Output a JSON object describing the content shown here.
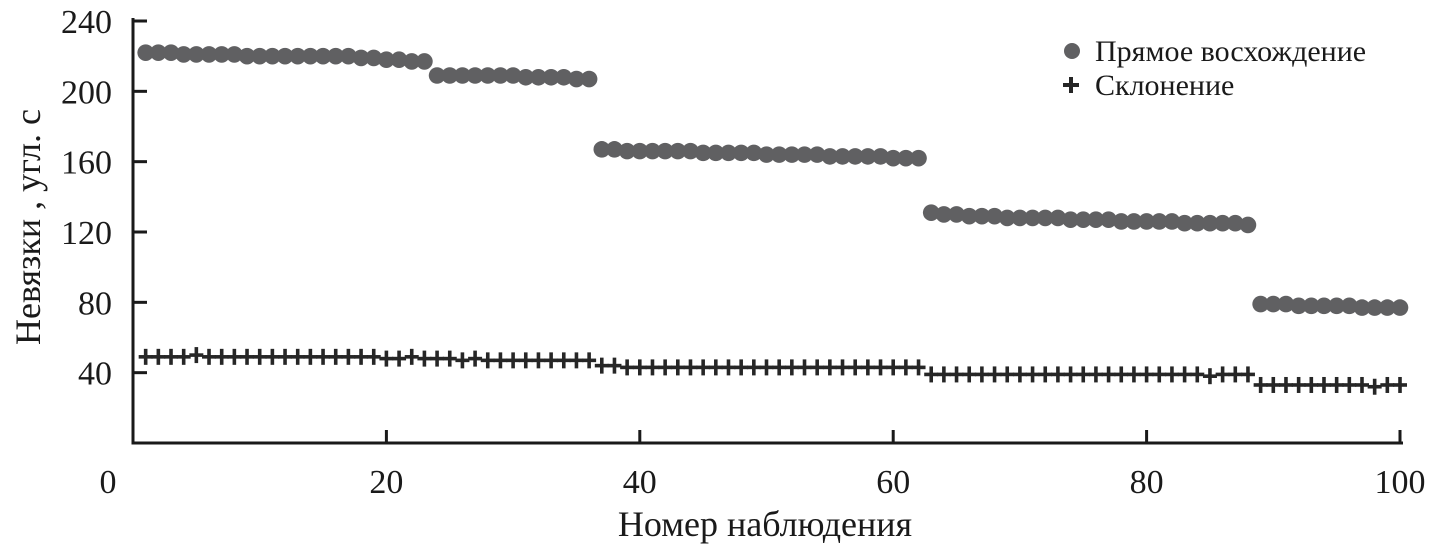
{
  "chart_data": {
    "type": "scatter",
    "title": "",
    "xlabel": "Номер наблюдения",
    "ylabel": "Невязки , угл. с",
    "xlim": [
      0,
      100
    ],
    "ylim": [
      0,
      240
    ],
    "x_ticks": [
      "0",
      "20",
      "40",
      "60",
      "80",
      "100"
    ],
    "y_ticks": [
      "40",
      "80",
      "120",
      "160",
      "200",
      "240"
    ],
    "grid": false,
    "legend_position": "top-right",
    "series": [
      {
        "name": "Прямое восхождение",
        "marker": "circle",
        "color": "#606062",
        "x": [
          1,
          2,
          3,
          4,
          5,
          6,
          7,
          8,
          9,
          10,
          11,
          12,
          13,
          14,
          15,
          16,
          17,
          18,
          19,
          20,
          21,
          22,
          23,
          24,
          25,
          26,
          27,
          28,
          29,
          30,
          31,
          32,
          33,
          34,
          35,
          36,
          37,
          38,
          39,
          40,
          41,
          42,
          43,
          44,
          45,
          46,
          47,
          48,
          49,
          50,
          51,
          52,
          53,
          54,
          55,
          56,
          57,
          58,
          59,
          60,
          61,
          62,
          63,
          64,
          65,
          66,
          67,
          68,
          69,
          70,
          71,
          72,
          73,
          74,
          75,
          76,
          77,
          78,
          79,
          80,
          81,
          82,
          83,
          84,
          85,
          86,
          87,
          88,
          89,
          90,
          91,
          92,
          93,
          94,
          95,
          96,
          97,
          98,
          99,
          100
        ],
        "y": [
          222,
          222,
          222,
          221,
          221,
          221,
          221,
          221,
          220,
          220,
          220,
          220,
          220,
          220,
          220,
          220,
          220,
          219,
          219,
          218,
          218,
          217,
          217,
          209,
          209,
          209,
          209,
          209,
          209,
          209,
          208,
          208,
          208,
          208,
          207,
          207,
          167,
          167,
          166,
          166,
          166,
          166,
          166,
          166,
          165,
          165,
          165,
          165,
          165,
          164,
          164,
          164,
          164,
          164,
          163,
          163,
          163,
          163,
          163,
          162,
          162,
          162,
          131,
          130,
          130,
          129,
          129,
          129,
          128,
          128,
          128,
          128,
          128,
          127,
          127,
          127,
          127,
          126,
          126,
          126,
          126,
          126,
          125,
          125,
          125,
          125,
          125,
          124,
          79,
          79,
          79,
          78,
          78,
          78,
          78,
          78,
          77,
          77,
          77,
          77
        ]
      },
      {
        "name": "Склонение",
        "marker": "plus",
        "color": "#262626",
        "x": [
          1,
          2,
          3,
          4,
          5,
          6,
          7,
          8,
          9,
          10,
          11,
          12,
          13,
          14,
          15,
          16,
          17,
          18,
          19,
          20,
          21,
          22,
          23,
          24,
          25,
          26,
          27,
          28,
          29,
          30,
          31,
          32,
          33,
          34,
          35,
          36,
          37,
          38,
          39,
          40,
          41,
          42,
          43,
          44,
          45,
          46,
          47,
          48,
          49,
          50,
          51,
          52,
          53,
          54,
          55,
          56,
          57,
          58,
          59,
          60,
          61,
          62,
          63,
          64,
          65,
          66,
          67,
          68,
          69,
          70,
          71,
          72,
          73,
          74,
          75,
          76,
          77,
          78,
          79,
          80,
          81,
          82,
          83,
          84,
          85,
          86,
          87,
          88,
          89,
          90,
          91,
          92,
          93,
          94,
          95,
          96,
          97,
          98,
          99,
          100
        ],
        "y": [
          49,
          49,
          49,
          49,
          50,
          49,
          49,
          49,
          49,
          49,
          49,
          49,
          49,
          49,
          49,
          49,
          49,
          49,
          49,
          48,
          48,
          49,
          48,
          48,
          48,
          47,
          48,
          47,
          47,
          47,
          47,
          47,
          47,
          47,
          47,
          47,
          44,
          44,
          43,
          43,
          43,
          43,
          43,
          43,
          43,
          43,
          43,
          43,
          43,
          43,
          43,
          43,
          43,
          43,
          43,
          43,
          43,
          43,
          43,
          43,
          43,
          43,
          39,
          39,
          39,
          39,
          39,
          39,
          39,
          39,
          39,
          39,
          39,
          39,
          39,
          39,
          39,
          39,
          39,
          39,
          39,
          39,
          39,
          39,
          38,
          39,
          39,
          39,
          33,
          33,
          33,
          33,
          33,
          33,
          33,
          33,
          33,
          32,
          33,
          33
        ]
      }
    ]
  }
}
